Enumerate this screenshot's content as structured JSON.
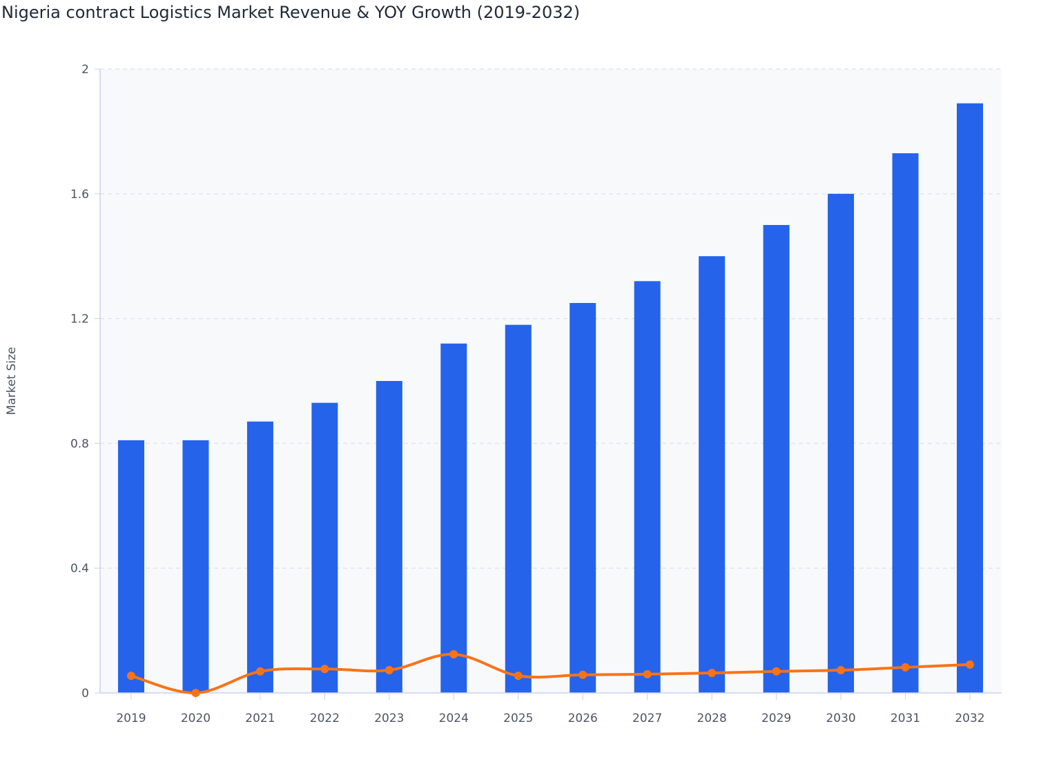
{
  "chart_data": {
    "type": "bar",
    "title": "Nigeria contract Logistics Market Revenue & YOY Growth (2019-2032)",
    "xlabel": "",
    "ylabel": "Market Size",
    "ylim": [
      0,
      2
    ],
    "yticks": [
      "0",
      "0.4",
      "0.8",
      "1.2",
      "1.6",
      "2"
    ],
    "grid": true,
    "categories": [
      "2019",
      "2020",
      "2021",
      "2022",
      "2023",
      "2024",
      "2025",
      "2026",
      "2027",
      "2028",
      "2029",
      "2030",
      "2031",
      "2032"
    ],
    "series": [
      {
        "type": "bar",
        "color": "#2563eb",
        "values": [
          0.81,
          0.81,
          0.87,
          0.93,
          1.0,
          1.12,
          1.18,
          1.25,
          1.32,
          1.4,
          1.5,
          1.6,
          1.73,
          1.89
        ]
      },
      {
        "type": "line",
        "color": "#f97316",
        "smooth": true,
        "values": [
          0.055,
          0.0,
          0.069,
          0.077,
          0.073,
          0.124,
          0.055,
          0.058,
          0.06,
          0.064,
          0.069,
          0.073,
          0.082,
          0.091
        ]
      }
    ]
  }
}
